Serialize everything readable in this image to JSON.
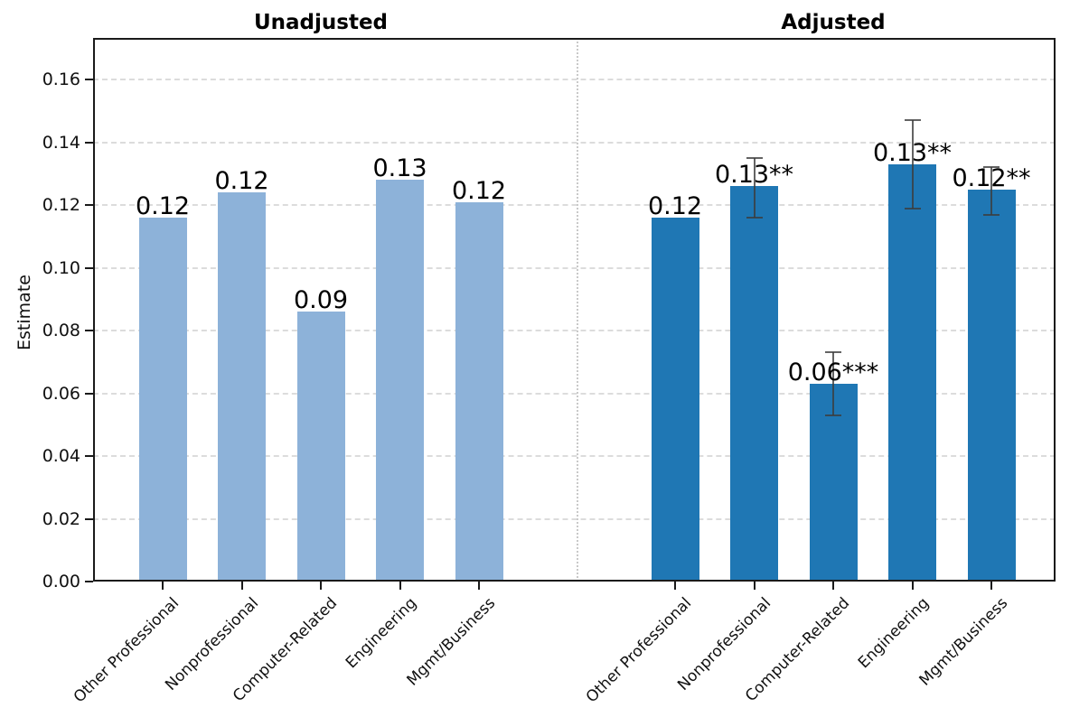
{
  "chart_data": {
    "type": "bar",
    "title": "",
    "ylabel": "Estimate",
    "ylim": [
      0,
      0.1733
    ],
    "yticks": [
      0.0,
      0.02,
      0.04,
      0.06,
      0.08,
      0.1,
      0.12,
      0.14,
      0.16
    ],
    "ytick_labels": [
      "0.00",
      "0.02",
      "0.04",
      "0.06",
      "0.08",
      "0.10",
      "0.12",
      "0.14",
      "0.16"
    ],
    "categories": [
      "Other Professional",
      "Nonprofessional",
      "Computer-Related",
      "Engineering",
      "Mgmt/Business"
    ],
    "grid": {
      "axis": "y",
      "style": "dashed",
      "color": "#dcdcdc"
    },
    "panel_separator": {
      "style": "dotted",
      "color": "#c9c9c9"
    },
    "frame_color": "#1a1a1a",
    "errorbar_color": "rgba(60,60,60,0.8)",
    "legend": "none",
    "panels": [
      {
        "title": "Unadjusted",
        "bar_color": "#8DB2D9",
        "values": [
          0.116,
          0.124,
          0.086,
          0.128,
          0.121
        ],
        "bar_labels": [
          "0.12",
          "0.12",
          "0.09",
          "0.13",
          "0.12"
        ],
        "errors": [
          null,
          null,
          null,
          null,
          null
        ]
      },
      {
        "title": "Adjusted",
        "bar_color": "#1F77B4",
        "values": [
          0.116,
          0.126,
          0.063,
          0.133,
          0.125
        ],
        "bar_labels": [
          "0.12",
          "0.13**",
          "0.06***",
          "0.13**",
          "0.12**"
        ],
        "errors": [
          null,
          [
            0.116,
            0.135
          ],
          [
            0.053,
            0.073
          ],
          [
            0.119,
            0.147
          ],
          [
            0.117,
            0.132
          ]
        ]
      }
    ]
  }
}
